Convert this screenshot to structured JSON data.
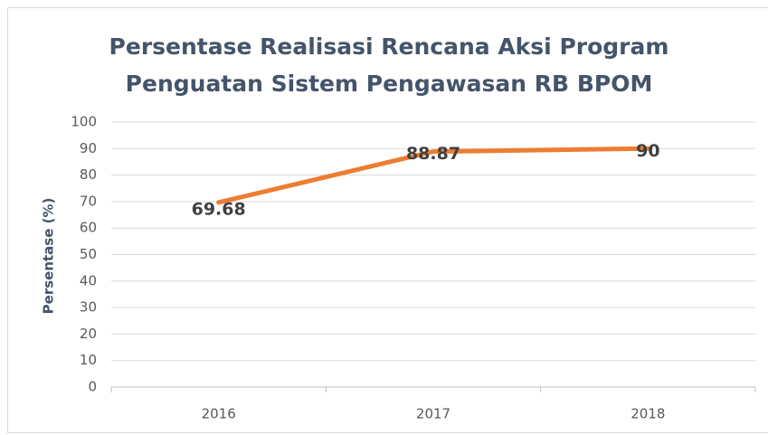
{
  "chart_data": {
    "type": "line",
    "title": [
      "Persentase Realisasi Rencana Aksi Program",
      "Penguatan Sistem Pengawasan RB BPOM"
    ],
    "y_label": "Persentase (%)",
    "categories": [
      "2016",
      "2017",
      "2018"
    ],
    "series": [
      {
        "name": "Persentase",
        "color": "#ed7d31",
        "values": [
          69.68,
          88.87,
          90
        ]
      }
    ],
    "ylim": [
      0,
      100
    ],
    "yticks": [
      0,
      10,
      20,
      30,
      40,
      50,
      60,
      70,
      80,
      90,
      100
    ],
    "grid": true,
    "data_labels": true,
    "legend": false
  }
}
